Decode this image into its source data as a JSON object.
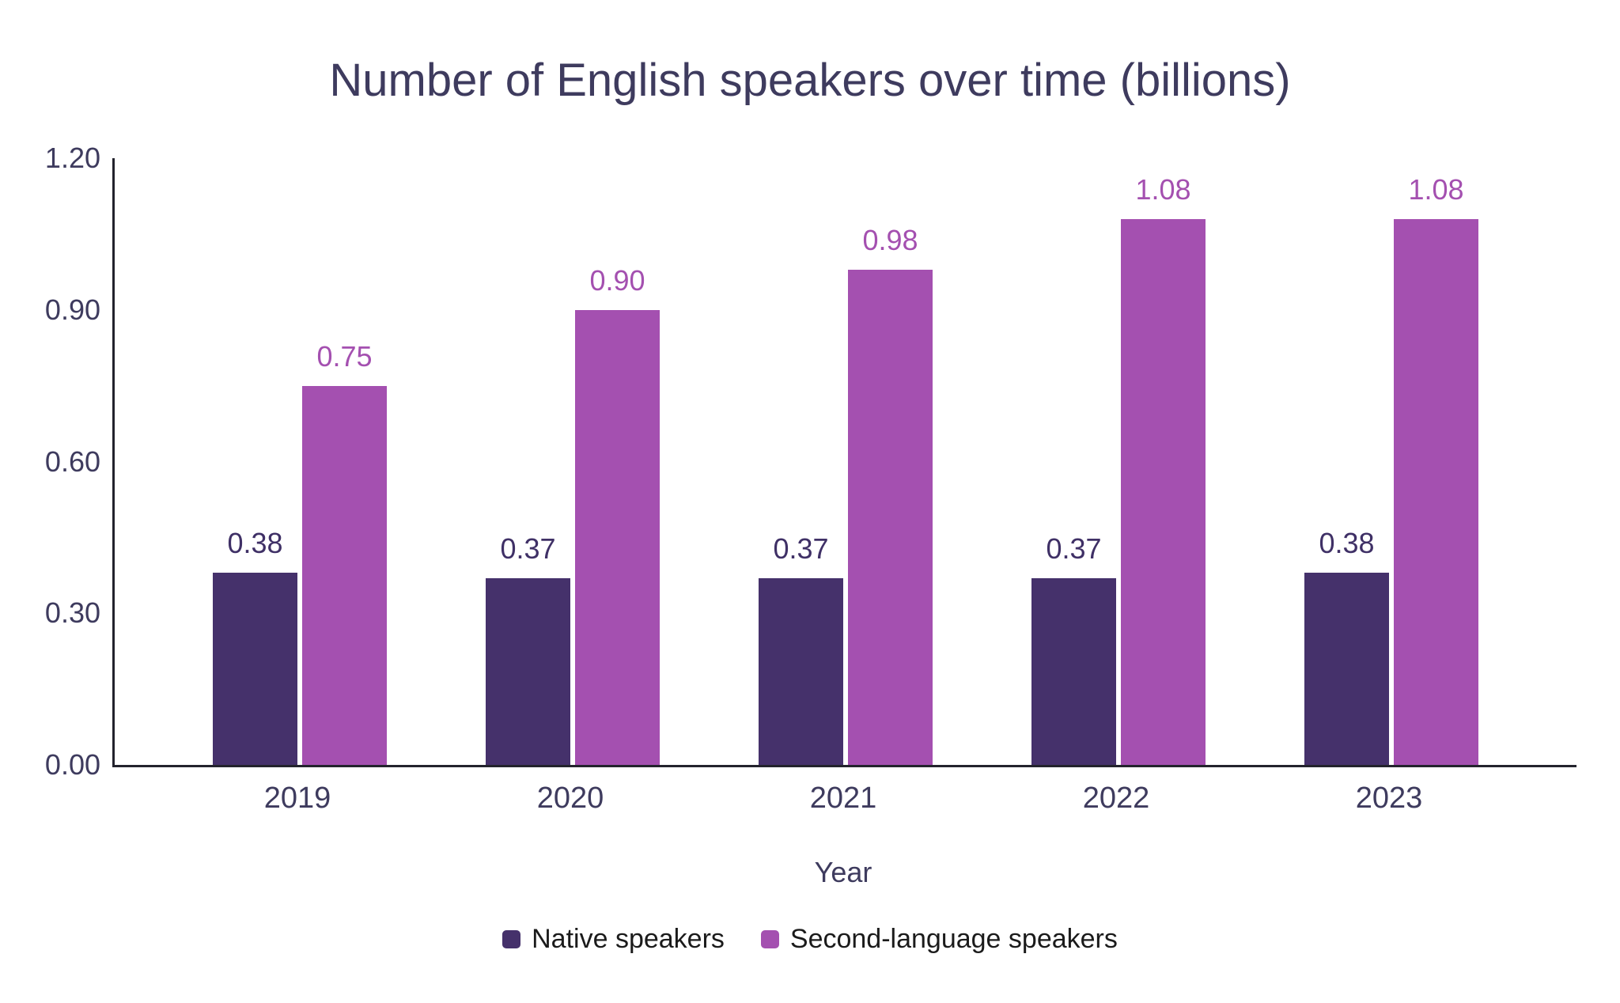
{
  "background": "#ffffff",
  "chart_data": {
    "type": "bar",
    "title": "Number of English speakers over time (billions)",
    "xlabel": "Year",
    "ylabel": "",
    "categories": [
      "2019",
      "2020",
      "2021",
      "2022",
      "2023"
    ],
    "series": [
      {
        "name": "Native speakers",
        "color": "#45316b",
        "label_color": "#3f3066",
        "values": [
          0.38,
          0.37,
          0.37,
          0.37,
          0.38
        ]
      },
      {
        "name": "Second-language speakers",
        "color": "#a450b0",
        "label_color": "#a450b0",
        "values": [
          0.75,
          0.9,
          0.98,
          1.08,
          1.08
        ]
      }
    ],
    "ylim": [
      0,
      1.2
    ],
    "yticks": [
      "0.00",
      "0.30",
      "0.60",
      "0.90",
      "1.20"
    ],
    "value_labels": "shown above bars, 2 decimal places",
    "grid": false,
    "legend_position": "bottom",
    "title_color": "#3e3b5e",
    "tick_label_color": "#3e3b5e",
    "axis_color": "#23232d"
  }
}
